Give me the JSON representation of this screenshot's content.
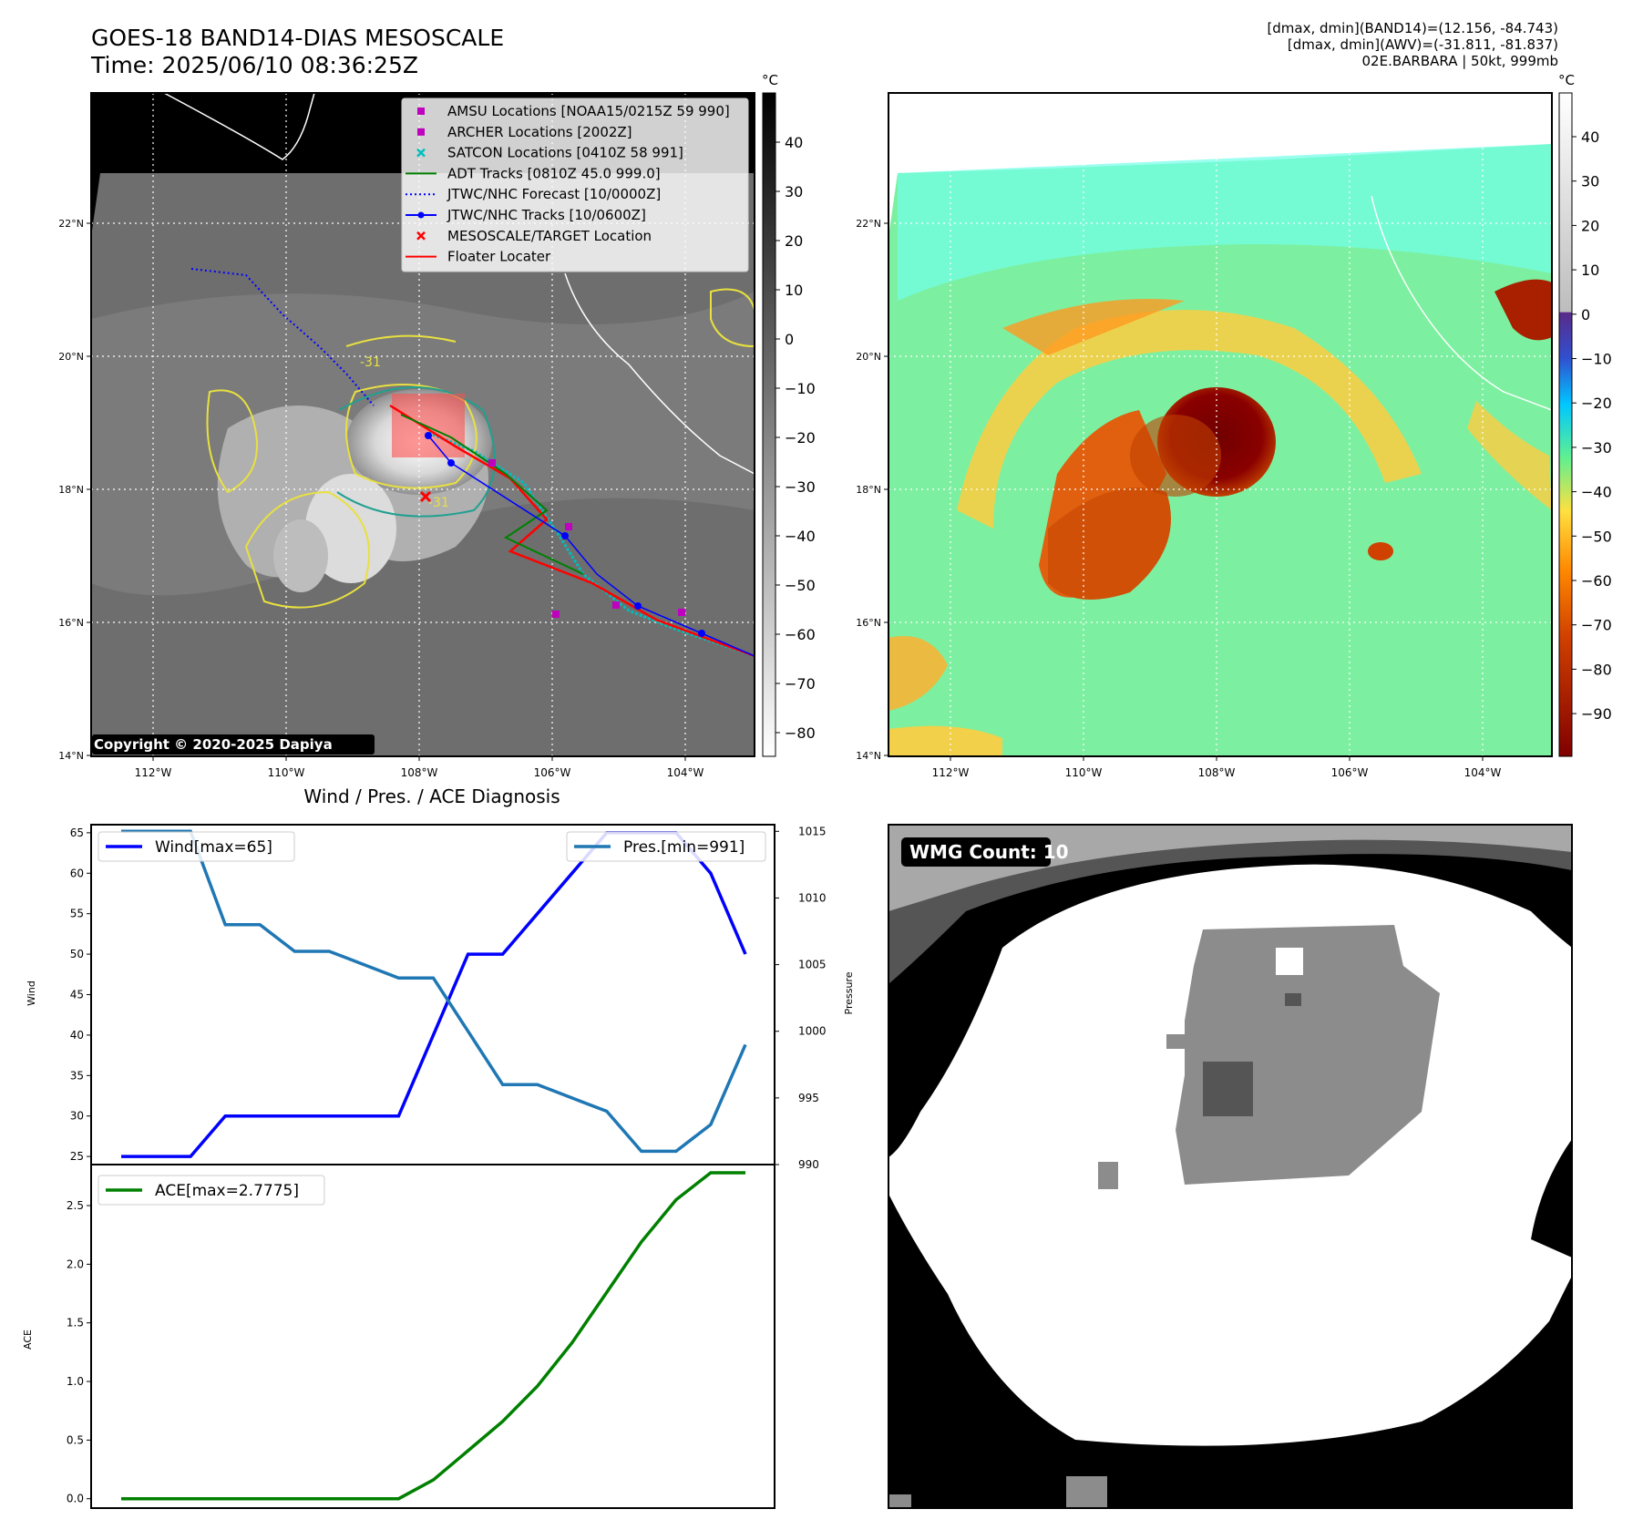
{
  "header": {
    "title_line1": "GOES-18 BAND14-DIAS MESOSCALE",
    "title_line2": "Time: 2025/06/10 08:36:25Z",
    "info_line1": "[dmax, dmin](BAND14)=(12.156, -84.743)",
    "info_line2": "[dmax, dmin](AWV)=(-31.811, -81.837)",
    "info_line3": "02E.BARBARA | 50kt, 999mb"
  },
  "colorbar_unit": "°C",
  "ir_colorbar_ticks": [
    "40",
    "30",
    "20",
    "10",
    "0",
    "−10",
    "−20",
    "−30",
    "−40",
    "−50",
    "−60",
    "−70",
    "−80"
  ],
  "awv_colorbar_ticks": [
    "40",
    "30",
    "20",
    "10",
    "0",
    "−10",
    "−20",
    "−30",
    "−40",
    "−50",
    "−60",
    "−70",
    "−80",
    "−90"
  ],
  "map_lat_ticks": [
    "22°N",
    "20°N",
    "18°N",
    "16°N",
    "14°N"
  ],
  "map_lon_ticks": [
    "112°W",
    "110°W",
    "108°W",
    "106°W",
    "104°W"
  ],
  "contour_label": "-31",
  "copyright": "Copyright © 2020-2025 Dapiya",
  "legend": [
    {
      "label": "AMSU Locations [NOAA15/0215Z 59 990]",
      "marker": "square",
      "color": "#bf00bf"
    },
    {
      "label": "ARCHER Locations [2002Z]",
      "marker": "square",
      "color": "#bf00bf"
    },
    {
      "label": "SATCON Locations [0410Z 58 991]",
      "marker": "x",
      "color": "#00bfbf"
    },
    {
      "label": "ADT Tracks [0810Z 45.0 999.0]",
      "marker": "line",
      "color": "#008000"
    },
    {
      "label": "JTWC/NHC Forecast [10/0000Z]",
      "marker": "dotted",
      "color": "#0000ff"
    },
    {
      "label": "JTWC/NHC Tracks [10/0600Z]",
      "marker": "line-dot",
      "color": "#0000ff"
    },
    {
      "label": "MESOSCALE/TARGET Location",
      "marker": "x",
      "color": "#ff0000"
    },
    {
      "label": "Floater Locater",
      "marker": "line",
      "color": "#ff0000"
    }
  ],
  "wmg_count": "WMG Count: 10",
  "chart_data": [
    {
      "type": "line",
      "title": "Wind / Pres. / ACE Diagnosis",
      "x": [
        0,
        1,
        2,
        3,
        4,
        5,
        6,
        7,
        8,
        9,
        10,
        11,
        12,
        13,
        14,
        15,
        16,
        17,
        18
      ],
      "series": [
        {
          "name": "Wind[max=65]",
          "axis": "left",
          "color": "#0000ff",
          "values": [
            25,
            25,
            25,
            30,
            30,
            30,
            30,
            30,
            30,
            40,
            50,
            50,
            55,
            60,
            65,
            65,
            65,
            60,
            50
          ]
        },
        {
          "name": "Pres.[min=991]",
          "axis": "right",
          "color": "#1f77b4",
          "values": [
            1015,
            1015,
            1015,
            1008,
            1008,
            1006,
            1006,
            1005,
            1004,
            1004,
            1000,
            996,
            996,
            995,
            994,
            991,
            991,
            993,
            999
          ]
        }
      ],
      "ylabel": "Wind",
      "ylabel_right": "Pressure",
      "ylim": [
        24,
        66
      ],
      "ylim_right": [
        990,
        1015.5
      ],
      "yticks": [
        25,
        30,
        35,
        40,
        45,
        50,
        55,
        60,
        65
      ],
      "yticks_right": [
        990,
        995,
        1000,
        1005,
        1010,
        1015
      ],
      "legend": "top-left and top-right"
    },
    {
      "type": "line",
      "x": [
        0,
        1,
        2,
        3,
        4,
        5,
        6,
        7,
        8,
        9,
        10,
        11,
        12,
        13,
        14,
        15,
        16,
        17,
        18
      ],
      "series": [
        {
          "name": "ACE[max=2.7775]",
          "color": "#008000",
          "values": [
            0,
            0,
            0,
            0,
            0,
            0,
            0,
            0,
            0,
            0.16,
            0.41,
            0.66,
            0.96,
            1.33,
            1.76,
            2.19,
            2.55,
            2.78,
            2.78
          ]
        }
      ],
      "ylabel": "ACE",
      "ylim": [
        -0.08,
        2.85
      ],
      "yticks": [
        0.0,
        0.5,
        1.0,
        1.5,
        2.0,
        2.5
      ],
      "ytick_labels": [
        "0.0",
        "0.5",
        "1.0",
        "1.5",
        "2.0",
        "2.5"
      ],
      "legend": "top-left"
    }
  ]
}
